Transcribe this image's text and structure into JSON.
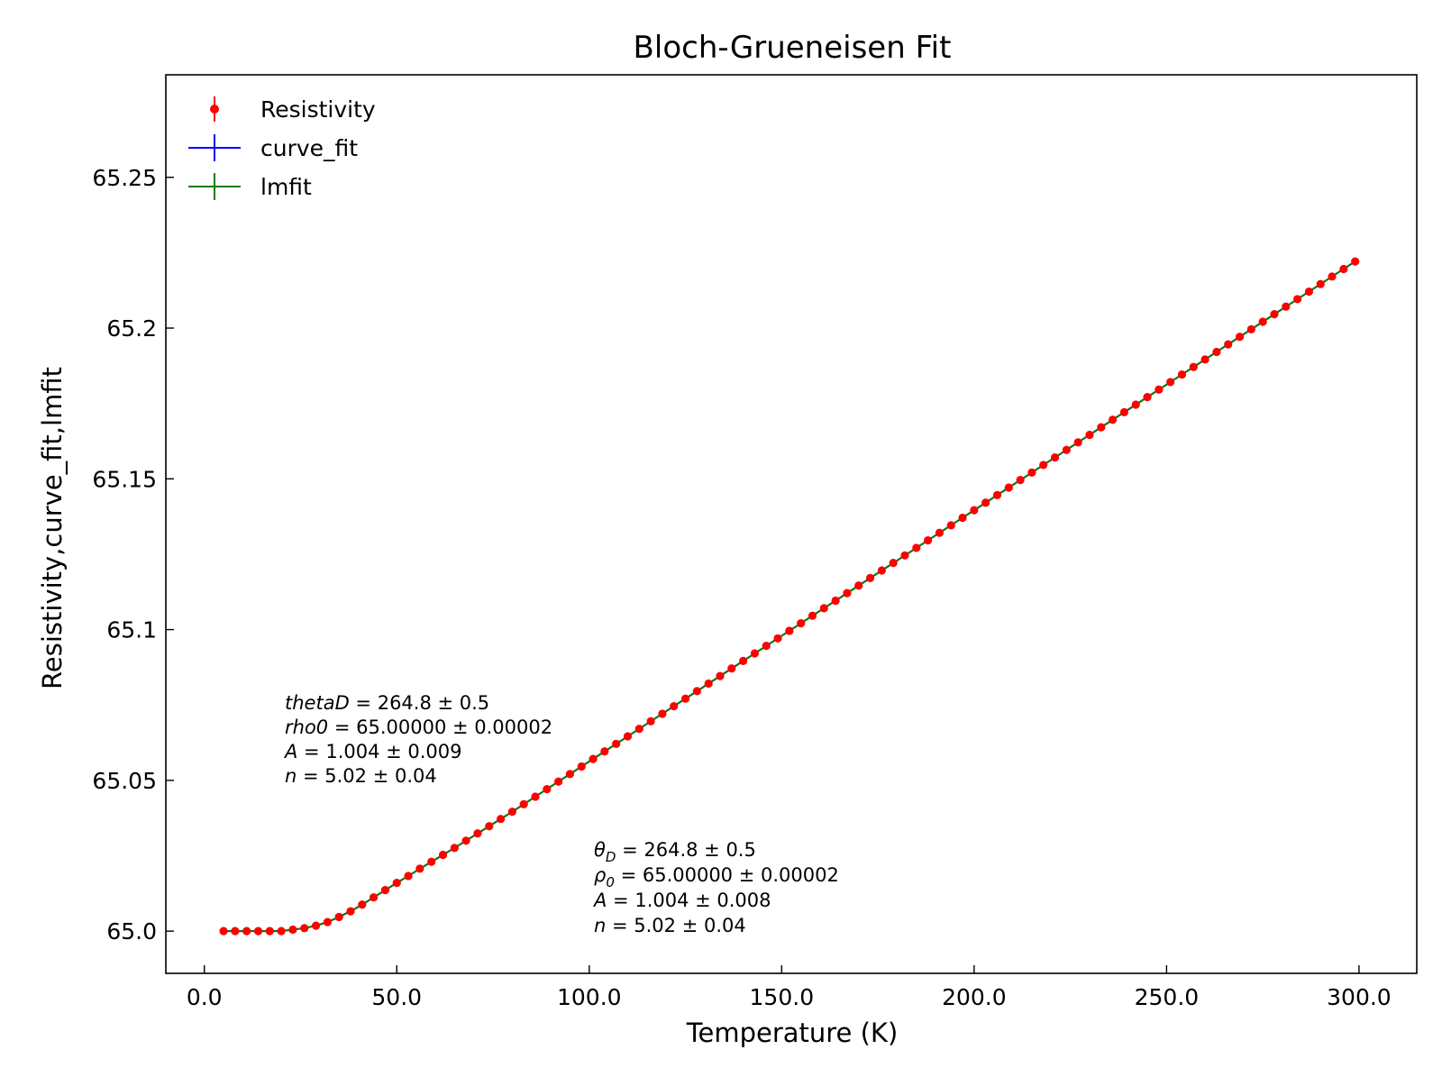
{
  "chart_data": {
    "type": "scatter",
    "title": "Bloch-Grueneisen Fit",
    "xlabel": "Temperature (K)",
    "ylabel": "Resistivity,curve_fit,lmfit",
    "xlim": [
      -10,
      315
    ],
    "ylim": [
      64.986,
      65.284
    ],
    "xticks": [
      0,
      50,
      100,
      150,
      200,
      250,
      300
    ],
    "xtick_labels": [
      "0.0",
      "50.0",
      "100.0",
      "150.0",
      "200.0",
      "250.0",
      "300.0"
    ],
    "yticks": [
      65.0,
      65.05,
      65.1,
      65.15,
      65.2,
      65.25
    ],
    "ytick_labels": [
      "65.0",
      "65.05",
      "65.1",
      "65.15",
      "65.2",
      "65.25"
    ],
    "grid": false,
    "legend_position": "upper left",
    "series": [
      {
        "name": "Resistivity",
        "color": "#ff0000",
        "style": "points-with-errorbars",
        "x": [
          5,
          8,
          11,
          14,
          17,
          20,
          23,
          26,
          29,
          32,
          35,
          38,
          41,
          44,
          47,
          50,
          53,
          56,
          59,
          62,
          65,
          68,
          71,
          74,
          77,
          80,
          83,
          86,
          89,
          92,
          95,
          98,
          101,
          104,
          107,
          110,
          113,
          116,
          119,
          122,
          125,
          128,
          131,
          134,
          137,
          140,
          143,
          146,
          149,
          152,
          155,
          158,
          161,
          164,
          167,
          170,
          173,
          176,
          179,
          182,
          185,
          188,
          191,
          194,
          197,
          200,
          203,
          206,
          209,
          212,
          215,
          218,
          221,
          224,
          227,
          230,
          233,
          236,
          239,
          242,
          245,
          248,
          251,
          254,
          257,
          260,
          263,
          266,
          269,
          272,
          275,
          278,
          281,
          284,
          287,
          290,
          293,
          296,
          299
        ],
        "y": [
          65.0,
          65.0,
          65.0,
          65.0,
          65.0,
          65.0,
          65.0005,
          65.001,
          65.0018,
          65.003,
          65.0047,
          65.0066,
          65.0088,
          65.0112,
          65.0136,
          65.016,
          65.0183,
          65.0207,
          65.023,
          65.0253,
          65.0276,
          65.03,
          65.0324,
          65.0348,
          65.0372,
          65.0396,
          65.0421,
          65.0446,
          65.0471,
          65.0496,
          65.0521,
          65.0546,
          65.0571,
          65.0596,
          65.0621,
          65.0646,
          65.0671,
          65.0696,
          65.0721,
          65.0746,
          65.0771,
          65.0796,
          65.0821,
          65.0846,
          65.0871,
          65.0896,
          65.0921,
          65.0946,
          65.0971,
          65.0996,
          65.1021,
          65.1046,
          65.1071,
          65.1096,
          65.1121,
          65.1146,
          65.1171,
          65.1196,
          65.1221,
          65.1246,
          65.1271,
          65.1296,
          65.1321,
          65.1346,
          65.1371,
          65.1396,
          65.1421,
          65.1446,
          65.1471,
          65.1496,
          65.1521,
          65.1546,
          65.1571,
          65.1596,
          65.1621,
          65.1646,
          65.1671,
          65.1696,
          65.1721,
          65.1746,
          65.1771,
          65.1796,
          65.1821,
          65.1846,
          65.1871,
          65.1896,
          65.1921,
          65.1946,
          65.1971,
          65.1996,
          65.2021,
          65.2046,
          65.2071,
          65.2096,
          65.2121,
          65.2146,
          65.2171,
          65.2196,
          65.2221
        ]
      },
      {
        "name": "curve_fit",
        "color": "#0000ff",
        "style": "line"
      },
      {
        "name": "lmfit",
        "color": "#008000",
        "style": "line"
      }
    ],
    "annotations": {
      "lmfit_params": [
        {
          "name": "thetaD",
          "equals": "264.8 ± 0.5"
        },
        {
          "name": "rho0",
          "equals": "65.00000 ± 0.00002"
        },
        {
          "name": "A",
          "equals": "1.004 ± 0.009"
        },
        {
          "name": "n",
          "equals": "5.02 ± 0.04"
        }
      ],
      "curvefit_params": [
        {
          "symbol": "θ",
          "sub": "D",
          "equals": "264.8 ± 0.5"
        },
        {
          "symbol": "ρ",
          "sub": "0",
          "equals": "65.00000 ± 0.00002"
        },
        {
          "symbol": "A",
          "sub": "",
          "equals": "1.004 ± 0.008"
        },
        {
          "symbol": "n",
          "sub": "",
          "equals": "5.02 ± 0.04"
        }
      ]
    }
  }
}
